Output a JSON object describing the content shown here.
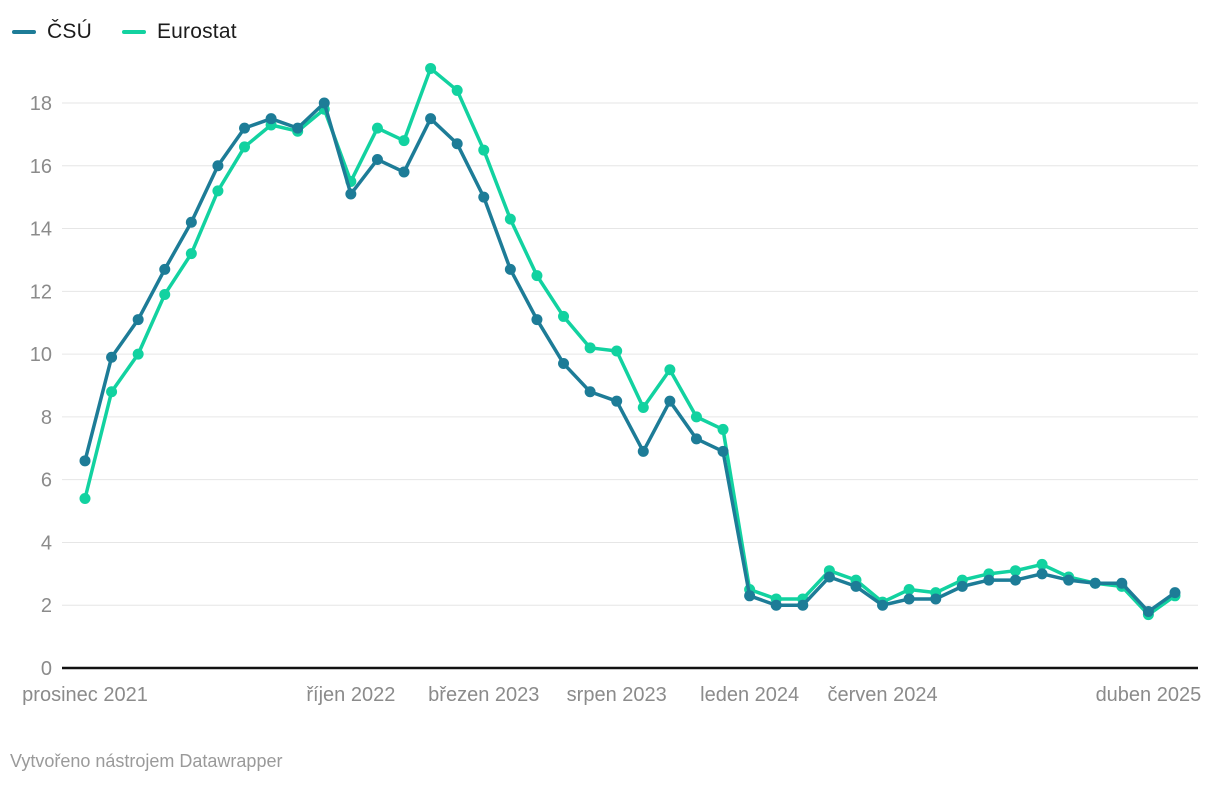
{
  "legend": {
    "items": [
      {
        "label": "ČSÚ",
        "color": "#1d7c97"
      },
      {
        "label": "Eurostat",
        "color": "#12d2a0"
      }
    ]
  },
  "footer": {
    "text": "Vytvořeno nástrojem Datawrapper"
  },
  "colors": {
    "series_csu": "#1d7c97",
    "series_eurostat": "#12d2a0",
    "gridline": "#e6e6e6",
    "zero_axis": "#111111",
    "tick_text": "#8b8b8b",
    "footer_text": "#9a9a9a"
  },
  "chart_data": {
    "type": "line",
    "title": "",
    "xlabel": "",
    "ylabel": "",
    "x_unit": "months, prosinec 2021 – květen 2025, one point per month",
    "n_points": 42,
    "grid": true,
    "legend_position": "top-left",
    "markers": true,
    "ylim": [
      0,
      19.5
    ],
    "y_ticks": [
      0,
      2,
      4,
      6,
      8,
      10,
      12,
      14,
      16,
      18
    ],
    "x_ticks": [
      {
        "month_index": 0,
        "label": "prosinec 2021"
      },
      {
        "month_index": 10,
        "label": "říjen 2022"
      },
      {
        "month_index": 15,
        "label": "březen 2023"
      },
      {
        "month_index": 20,
        "label": "srpen 2023"
      },
      {
        "month_index": 25,
        "label": "leden 2024"
      },
      {
        "month_index": 30,
        "label": "červen 2024"
      },
      {
        "month_index": 40,
        "label": "duben 2025"
      }
    ],
    "series": [
      {
        "name": "Eurostat",
        "color": "#12d2a0",
        "values": [
          5.4,
          8.8,
          10.0,
          11.9,
          13.2,
          15.2,
          16.6,
          17.3,
          17.1,
          17.8,
          15.5,
          17.2,
          16.8,
          19.1,
          18.4,
          16.5,
          14.3,
          12.5,
          11.2,
          10.2,
          10.1,
          8.3,
          9.5,
          8.0,
          7.6,
          2.5,
          2.2,
          2.2,
          3.1,
          2.8,
          2.1,
          2.5,
          2.4,
          2.8,
          3.0,
          3.1,
          3.3,
          2.9,
          2.7,
          2.6,
          1.7,
          2.3
        ]
      },
      {
        "name": "ČSÚ",
        "color": "#1d7c97",
        "values": [
          6.6,
          9.9,
          11.1,
          12.7,
          14.2,
          16.0,
          17.2,
          17.5,
          17.2,
          18.0,
          15.1,
          16.2,
          15.8,
          17.5,
          16.7,
          15.0,
          12.7,
          11.1,
          9.7,
          8.8,
          8.5,
          6.9,
          8.5,
          7.3,
          6.9,
          2.3,
          2.0,
          2.0,
          2.9,
          2.6,
          2.0,
          2.2,
          2.2,
          2.6,
          2.8,
          2.8,
          3.0,
          2.8,
          2.7,
          2.7,
          1.8,
          2.4
        ]
      }
    ]
  }
}
